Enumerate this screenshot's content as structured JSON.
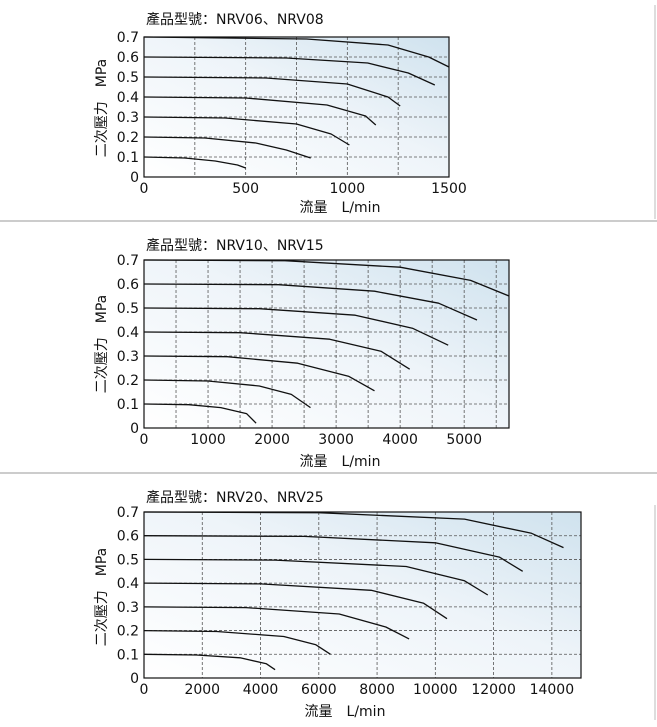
{
  "chart_data": [
    {
      "type": "line",
      "title": "產品型號：NRV06、NRV08",
      "xlabel": "流量　L/min",
      "ylabel": "二次壓力　MPa",
      "xlim": [
        0,
        1500
      ],
      "ylim": [
        0,
        0.7
      ],
      "x_ticks": [
        0,
        500,
        1000,
        1500
      ],
      "y_ticks": [
        0,
        0.1,
        0.2,
        0.3,
        0.4,
        0.5,
        0.6,
        0.7
      ],
      "x_grid": [
        250,
        500,
        750,
        1000,
        1250,
        1500
      ],
      "y_grid": [
        0.1,
        0.2,
        0.3,
        0.4,
        0.5,
        0.6
      ],
      "x_tick_labels": [
        "0",
        "500",
        "1000",
        "1500"
      ],
      "y_tick_labels": [
        "0",
        "0.1",
        "0.2",
        "0.3",
        "0.4",
        "0.5",
        "0.6",
        "0.7"
      ],
      "series": [
        {
          "x": [
            0,
            200,
            350,
            460,
            500
          ],
          "y": [
            0.1,
            0.095,
            0.08,
            0.06,
            0.045
          ]
        },
        {
          "x": [
            0,
            300,
            550,
            700,
            820
          ],
          "y": [
            0.2,
            0.195,
            0.17,
            0.135,
            0.095
          ]
        },
        {
          "x": [
            0,
            400,
            750,
            920,
            1010
          ],
          "y": [
            0.3,
            0.295,
            0.265,
            0.215,
            0.16
          ]
        },
        {
          "x": [
            0,
            500,
            900,
            1090,
            1140
          ],
          "y": [
            0.4,
            0.395,
            0.36,
            0.305,
            0.26
          ]
        },
        {
          "x": [
            0,
            600,
            1000,
            1200,
            1260
          ],
          "y": [
            0.5,
            0.495,
            0.465,
            0.4,
            0.355
          ]
        },
        {
          "x": [
            0,
            700,
            1100,
            1300,
            1430
          ],
          "y": [
            0.6,
            0.595,
            0.57,
            0.52,
            0.46
          ]
        },
        {
          "x": [
            0,
            800,
            1200,
            1400,
            1500
          ],
          "y": [
            0.7,
            0.69,
            0.66,
            0.6,
            0.55
          ]
        }
      ]
    },
    {
      "type": "line",
      "title": "產品型號：NRV10、NRV15",
      "xlabel": "流量　L/min",
      "ylabel": "二次壓力　MPa",
      "xlim": [
        0,
        5700
      ],
      "ylim": [
        0,
        0.7
      ],
      "x_ticks": [
        0,
        1000,
        2000,
        3000,
        4000,
        5000
      ],
      "y_ticks": [
        0,
        0.1,
        0.2,
        0.3,
        0.4,
        0.5,
        0.6,
        0.7
      ],
      "x_grid": [
        500,
        1000,
        1500,
        2000,
        2500,
        3000,
        3500,
        4000,
        4500,
        5000,
        5500
      ],
      "y_grid": [
        0.1,
        0.2,
        0.3,
        0.4,
        0.5,
        0.6
      ],
      "x_tick_labels": [
        "0",
        "1000",
        "2000",
        "3000",
        "4000",
        "5000"
      ],
      "y_tick_labels": [
        "0",
        "0.1",
        "0.2",
        "0.3",
        "0.4",
        "0.5",
        "0.6",
        "0.7"
      ],
      "series": [
        {
          "x": [
            0,
            700,
            1200,
            1600,
            1750
          ],
          "y": [
            0.1,
            0.097,
            0.085,
            0.06,
            0.02
          ]
        },
        {
          "x": [
            0,
            1000,
            1800,
            2300,
            2600
          ],
          "y": [
            0.2,
            0.196,
            0.175,
            0.14,
            0.085
          ]
        },
        {
          "x": [
            0,
            1300,
            2400,
            3200,
            3600
          ],
          "y": [
            0.3,
            0.297,
            0.27,
            0.215,
            0.155
          ]
        },
        {
          "x": [
            0,
            1500,
            2900,
            3700,
            4150
          ],
          "y": [
            0.4,
            0.397,
            0.37,
            0.32,
            0.245
          ]
        },
        {
          "x": [
            0,
            1800,
            3300,
            4200,
            4750
          ],
          "y": [
            0.5,
            0.497,
            0.47,
            0.415,
            0.345
          ]
        },
        {
          "x": [
            0,
            2100,
            3600,
            4600,
            5200
          ],
          "y": [
            0.6,
            0.597,
            0.57,
            0.52,
            0.45
          ]
        },
        {
          "x": [
            0,
            2200,
            4000,
            5100,
            5700
          ],
          "y": [
            0.7,
            0.697,
            0.67,
            0.615,
            0.55
          ]
        }
      ]
    },
    {
      "type": "line",
      "title": "產品型號：NRV20、NRV25",
      "xlabel": "流量　L/min",
      "ylabel": "二次壓力　MPa",
      "xlim": [
        0,
        15000
      ],
      "ylim": [
        0,
        0.7
      ],
      "x_ticks": [
        0,
        2000,
        4000,
        6000,
        8000,
        10000,
        12000,
        14000
      ],
      "y_ticks": [
        0,
        0.1,
        0.2,
        0.3,
        0.4,
        0.5,
        0.6,
        0.7
      ],
      "x_grid": [
        2000,
        4000,
        6000,
        8000,
        10000,
        12000,
        14000
      ],
      "y_grid": [
        0.1,
        0.2,
        0.3,
        0.4,
        0.5,
        0.6
      ],
      "x_tick_labels": [
        "0",
        "2000",
        "4000",
        "6000",
        "8000",
        "10000",
        "12000",
        "14000"
      ],
      "y_tick_labels": [
        "0",
        "0.1",
        "0.2",
        "0.3",
        "0.4",
        "0.5",
        "0.6",
        "0.7"
      ],
      "series": [
        {
          "x": [
            0,
            1800,
            3300,
            4200,
            4500
          ],
          "y": [
            0.1,
            0.097,
            0.085,
            0.06,
            0.035
          ]
        },
        {
          "x": [
            0,
            2500,
            4800,
            5900,
            6400
          ],
          "y": [
            0.2,
            0.196,
            0.175,
            0.14,
            0.1
          ]
        },
        {
          "x": [
            0,
            3500,
            6700,
            8300,
            9100
          ],
          "y": [
            0.3,
            0.297,
            0.27,
            0.215,
            0.165
          ]
        },
        {
          "x": [
            0,
            4000,
            7800,
            9600,
            10400
          ],
          "y": [
            0.4,
            0.397,
            0.37,
            0.315,
            0.25
          ]
        },
        {
          "x": [
            0,
            4500,
            9000,
            11000,
            11800
          ],
          "y": [
            0.5,
            0.497,
            0.47,
            0.41,
            0.35
          ]
        },
        {
          "x": [
            0,
            5500,
            10000,
            12200,
            13000
          ],
          "y": [
            0.6,
            0.597,
            0.57,
            0.51,
            0.45
          ]
        },
        {
          "x": [
            0,
            6000,
            11000,
            13300,
            14400
          ],
          "y": [
            0.7,
            0.697,
            0.67,
            0.61,
            0.55
          ]
        }
      ]
    }
  ]
}
